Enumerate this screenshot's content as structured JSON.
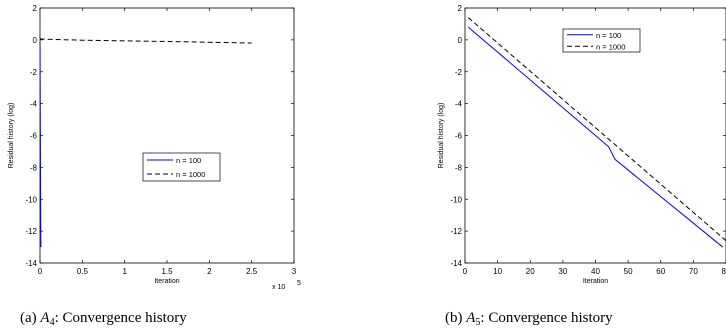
{
  "chart_data": [
    {
      "type": "line",
      "panel_tag": "(a)",
      "caption_symbol": "A",
      "caption_sub": "4",
      "caption_rest": ": Convergence history",
      "xlabel": "Iteration",
      "ylabel": "Residual history (log)",
      "xlim": [
        0,
        3
      ],
      "ylim": [
        -14,
        2
      ],
      "x_multiplier_base": "x 10",
      "x_multiplier_exp": "5",
      "xticks": [
        0,
        0.5,
        1,
        1.5,
        2,
        2.5,
        3
      ],
      "xtick_labels": [
        "0",
        "0.5",
        "1",
        "1.5",
        "2",
        "2.5",
        "3"
      ],
      "yticks": [
        2,
        0,
        -2,
        -4,
        -6,
        -8,
        -10,
        -12,
        -14
      ],
      "ytick_labels": [
        "2",
        "0",
        "-2",
        "-4",
        "-6",
        "-8",
        "-10",
        "-12",
        "-14"
      ],
      "legend_position": "center-right",
      "series": [
        {
          "name": "n = 100",
          "color": "#0000ff",
          "dash": "solid",
          "x": [
            0,
            0.001,
            0.002,
            0.004,
            0.006,
            0.008,
            0.01,
            0.012
          ],
          "y": [
            0.1,
            -0.5,
            -2.5,
            -5.5,
            -8.5,
            -11,
            -12.5,
            -13
          ]
        },
        {
          "name": "n = 1000",
          "color": "#000000",
          "dash": "dashed",
          "x": [
            0,
            0.01,
            0.5,
            1.0,
            1.5,
            2.0,
            2.5
          ],
          "y": [
            0.1,
            0.05,
            -0.02,
            -0.06,
            -0.1,
            -0.15,
            -0.2
          ]
        }
      ]
    },
    {
      "type": "line",
      "panel_tag": "(b)",
      "caption_symbol": "A",
      "caption_sub": "5",
      "caption_rest": ": Convergence history",
      "xlabel": "Iteration",
      "ylabel": "Residual history (log)",
      "xlim": [
        0,
        80
      ],
      "ylim": [
        -14,
        2
      ],
      "xticks": [
        0,
        10,
        20,
        30,
        40,
        50,
        60,
        70,
        80
      ],
      "xtick_labels": [
        "0",
        "10",
        "20",
        "30",
        "40",
        "50",
        "60",
        "70",
        "80"
      ],
      "yticks": [
        2,
        0,
        -2,
        -4,
        -6,
        -8,
        -10,
        -12,
        -14
      ],
      "ytick_labels": [
        "2",
        "0",
        "-2",
        "-4",
        "-6",
        "-8",
        "-10",
        "-12",
        "-14"
      ],
      "legend_position": "top-right",
      "series": [
        {
          "name": "n = 100",
          "color": "#0000ff",
          "dash": "solid",
          "x": [
            1,
            44,
            45,
            46,
            79
          ],
          "y": [
            0.8,
            -6.7,
            -7.1,
            -7.5,
            -13
          ]
        },
        {
          "name": "n = 1000",
          "color": "#000000",
          "dash": "dashed",
          "x": [
            1,
            80
          ],
          "y": [
            1.4,
            -12.6
          ]
        }
      ]
    }
  ]
}
